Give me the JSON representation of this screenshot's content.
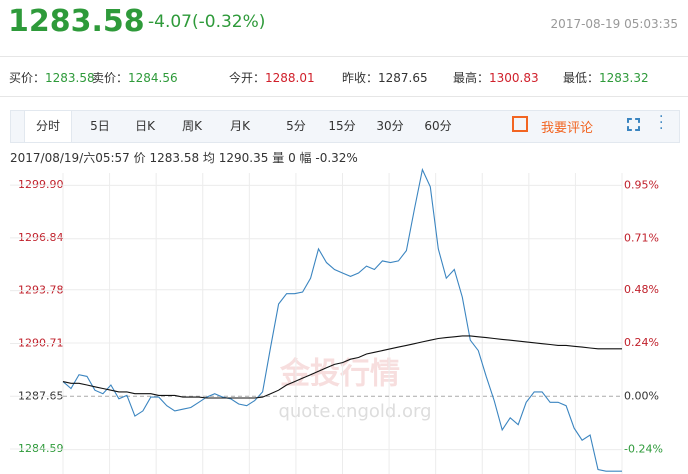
{
  "header": {
    "price": "1283.58",
    "change": "-4.07(-0.32%)",
    "datetime": "2017-08-19 05:03:35"
  },
  "quotes": [
    {
      "label": "买价：",
      "value": "1283.58"
    },
    {
      "label": "卖价：",
      "value": "1284.56"
    },
    {
      "label": "今开：",
      "value": "1288.01"
    },
    {
      "label": "昨收：",
      "value": "1287.65"
    },
    {
      "label": "最高：",
      "value": "1300.83"
    },
    {
      "label": "最低：",
      "value": "1283.32"
    }
  ],
  "tabs": [
    "分时",
    "5日",
    "日K",
    "周K",
    "月K",
    "5分",
    "15分",
    "30分",
    "60分"
  ],
  "comment": "我要评论",
  "info": {
    "time": "2017/08/19/六05:57",
    "price_label": "价",
    "price": "1283.58",
    "avg_label": "均",
    "avg": "1290.35",
    "vol_label": "量",
    "vol": "0",
    "amp_label": "幅",
    "amp": "-0.32%"
  },
  "watermark": {
    "name": "金投行情",
    "url": "quote.cngold.org"
  },
  "chart_data": {
    "type": "line",
    "series": [
      {
        "color": "#3b85c0",
        "values": [
          1288.5,
          1288.1,
          1288.9,
          1288.8,
          1288.0,
          1287.8,
          1288.3,
          1287.5,
          1287.7,
          1286.5,
          1286.8,
          1287.6,
          1287.6,
          1287.1,
          1286.8,
          1286.9,
          1287.0,
          1287.3,
          1287.6,
          1287.8,
          1287.6,
          1287.5,
          1287.2,
          1287.1,
          1287.4,
          1287.9,
          1290.5,
          1293.0,
          1293.6,
          1293.6,
          1293.7,
          1294.5,
          1296.2,
          1295.4,
          1295.0,
          1294.8,
          1294.6,
          1294.8,
          1295.2,
          1295.0,
          1295.5,
          1295.4,
          1295.5,
          1296.1,
          1298.5,
          1300.8,
          1299.8,
          1296.2,
          1294.5,
          1295.0,
          1293.4,
          1290.9,
          1290.3,
          1288.8,
          1287.4,
          1285.7,
          1286.4,
          1286.0,
          1287.3,
          1287.9,
          1287.9,
          1287.3,
          1287.3,
          1287.1,
          1285.8,
          1285.1,
          1285.4,
          1283.4,
          1283.3,
          1283.3,
          1283.3
        ]
      },
      {
        "color": "#111111",
        "values": [
          1288.5,
          1288.4,
          1288.4,
          1288.3,
          1288.2,
          1288.1,
          1288.0,
          1287.9,
          1287.9,
          1287.8,
          1287.8,
          1287.8,
          1287.7,
          1287.7,
          1287.7,
          1287.6,
          1287.6,
          1287.6,
          1287.55,
          1287.55,
          1287.55,
          1287.55,
          1287.55,
          1287.55,
          1287.55,
          1287.6,
          1287.8,
          1288.0,
          1288.3,
          1288.5,
          1288.7,
          1288.9,
          1289.1,
          1289.3,
          1289.5,
          1289.6,
          1289.8,
          1289.9,
          1290.1,
          1290.2,
          1290.3,
          1290.4,
          1290.5,
          1290.6,
          1290.7,
          1290.8,
          1290.9,
          1291.0,
          1291.05,
          1291.1,
          1291.15,
          1291.15,
          1291.1,
          1291.05,
          1291.0,
          1290.95,
          1290.9,
          1290.85,
          1290.8,
          1290.75,
          1290.7,
          1290.65,
          1290.6,
          1290.6,
          1290.55,
          1290.5,
          1290.45,
          1290.4,
          1290.4,
          1290.4,
          1290.4
        ]
      }
    ],
    "ylim": [
      1283.14,
      1300.6
    ],
    "yticks": [
      {
        "value": 1299.9,
        "label": "1299.90"
      },
      1296.84,
      1293.78,
      1290.71,
      1287.65,
      1284.59
    ],
    "y2lim": [
      -0.35,
      1.006
    ],
    "y2ticks": [
      {
        "value": 0.95,
        "label": "0.95%"
      },
      {
        "value": 0.71,
        "label": "0.71%"
      },
      {
        "value": 0.48,
        "label": "0.48%"
      },
      {
        "value": 0.24,
        "label": "0.24%"
      },
      {
        "value": 0,
        "label": "0.00%"
      },
      {
        "value": -0.24,
        "label": "-0.24%"
      }
    ],
    "grid": true
  }
}
